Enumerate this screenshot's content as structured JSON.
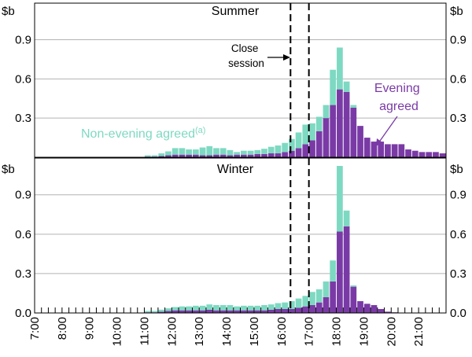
{
  "chart_data": {
    "type": "bar",
    "stacked": true,
    "unit": "$b",
    "x_ticks": [
      "7:00",
      "8:00",
      "9:00",
      "10:00",
      "11:00",
      "12:00",
      "13:00",
      "14:00",
      "15:00",
      "16:00",
      "17:00",
      "18:00",
      "19:00",
      "20:00",
      "21:00"
    ],
    "x_range": [
      7,
      22
    ],
    "bin_width_hours": 0.25,
    "y_ticks": [
      "0.0",
      "0.3",
      "0.6",
      "0.9"
    ],
    "ylim": [
      0,
      1.18
    ],
    "close_session_lines": [
      16.33,
      17.0
    ],
    "colors": {
      "non_evening": "#7ed9c2",
      "evening": "#7a3aa6"
    },
    "panels": [
      {
        "title": "Summer",
        "ylabel_left": "$b",
        "ylabel_right": "$b",
        "annotations": {
          "close_session": "Close session",
          "non_evening": "Non-evening agreed",
          "non_evening_sup": "(a)",
          "evening": "Evening agreed"
        },
        "start_hour": 11.0,
        "series": [
          {
            "name": "Evening agreed",
            "values": [
              0.005,
              0.005,
              0.01,
              0.015,
              0.02,
              0.02,
              0.02,
              0.02,
              0.015,
              0.015,
              0.02,
              0.02,
              0.015,
              0.02,
              0.02,
              0.02,
              0.025,
              0.025,
              0.03,
              0.03,
              0.04,
              0.05,
              0.07,
              0.1,
              0.13,
              0.2,
              0.3,
              0.4,
              0.52,
              0.5,
              0.38,
              0.24,
              0.15,
              0.12,
              0.12,
              0.1,
              0.1,
              0.1,
              0.06,
              0.05,
              0.04,
              0.04,
              0.04,
              0.03
            ]
          },
          {
            "name": "Non-evening agreed",
            "values": [
              0.01,
              0.01,
              0.02,
              0.03,
              0.05,
              0.05,
              0.04,
              0.04,
              0.06,
              0.07,
              0.05,
              0.05,
              0.04,
              0.02,
              0.03,
              0.03,
              0.03,
              0.04,
              0.05,
              0.06,
              0.07,
              0.09,
              0.12,
              0.15,
              0.13,
              0.11,
              0.1,
              0.27,
              0.32,
              0.08,
              0.02,
              0.0,
              0.0,
              0.0,
              0.0,
              0.0,
              0.0,
              0.0,
              0.0,
              0.0,
              0.0,
              0.0,
              0.0,
              0.0
            ]
          }
        ]
      },
      {
        "title": "Winter",
        "ylabel_left": "$b",
        "ylabel_right": "$b",
        "start_hour": 11.0,
        "series": [
          {
            "name": "Evening agreed",
            "values": [
              0.005,
              0.005,
              0.01,
              0.015,
              0.02,
              0.02,
              0.02,
              0.02,
              0.02,
              0.025,
              0.02,
              0.02,
              0.02,
              0.02,
              0.02,
              0.02,
              0.02,
              0.02,
              0.025,
              0.03,
              0.03,
              0.03,
              0.04,
              0.05,
              0.06,
              0.08,
              0.12,
              0.24,
              0.62,
              0.66,
              0.2,
              0.09,
              0.07,
              0.06,
              0.03,
              0.01,
              0.005,
              0.0,
              0.0,
              0.0,
              0.0,
              0.0,
              0.0,
              0.0
            ]
          },
          {
            "name": "Non-evening agreed",
            "values": [
              0.01,
              0.01,
              0.015,
              0.02,
              0.025,
              0.03,
              0.03,
              0.035,
              0.035,
              0.04,
              0.04,
              0.04,
              0.04,
              0.03,
              0.035,
              0.035,
              0.035,
              0.04,
              0.04,
              0.045,
              0.05,
              0.06,
              0.07,
              0.08,
              0.1,
              0.1,
              0.12,
              0.16,
              0.5,
              0.12,
              0.01,
              0.0,
              0.0,
              0.0,
              0.0,
              0.0,
              0.0,
              0.0,
              0.0,
              0.0,
              0.0,
              0.0,
              0.0,
              0.0
            ]
          }
        ]
      }
    ]
  }
}
